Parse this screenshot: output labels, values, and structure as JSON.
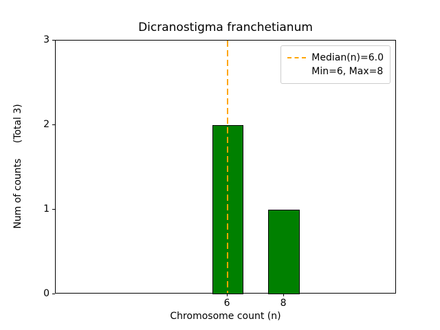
{
  "chart_data": {
    "type": "bar",
    "title": "Dicranostigma franchetianum",
    "xlabel": "Chromosome count (n)",
    "ylabel": "Num of counts     (Total 3)",
    "categories": [
      6,
      8
    ],
    "values": [
      2,
      1
    ],
    "bar_width": 1.1,
    "bar_color": "#008000",
    "bar_edge_color": "#000000",
    "xlim": [
      -0.1,
      12.0
    ],
    "ylim": [
      0,
      3
    ],
    "xticks": [
      6,
      8
    ],
    "yticks": [
      0,
      1,
      2,
      3
    ],
    "grid": false,
    "median_line": {
      "x": 6.0,
      "color": "#ffa500",
      "style": "dashed",
      "label": "Median(n)=6.0"
    },
    "legend": {
      "position": "upper right",
      "items": [
        {
          "label": "Median(n)=6.0",
          "handle": "dashed-line",
          "handle_color": "#ffa500"
        },
        {
          "label": "Min=6, Max=8",
          "handle": "none"
        }
      ]
    }
  }
}
